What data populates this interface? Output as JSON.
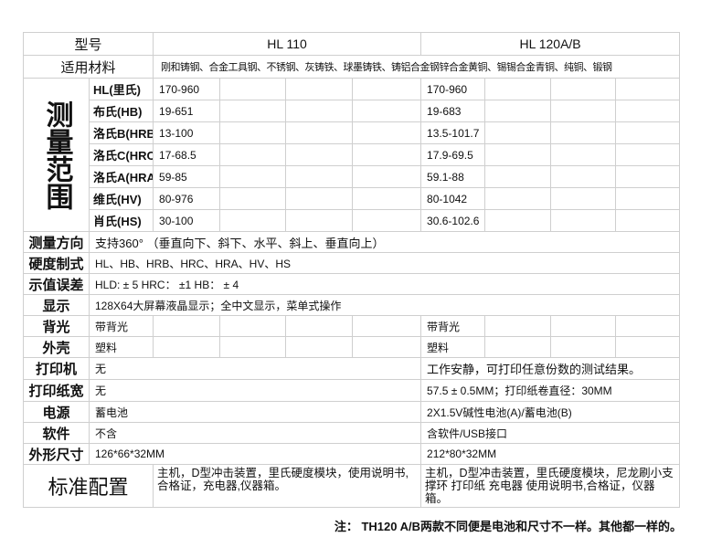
{
  "header": {
    "label": "型号",
    "model_a": "HL 110",
    "model_b": "HL 120A/B"
  },
  "materials": {
    "label": "适用材料",
    "value": "刚和铸钢、合金工具钢、不锈钢、灰铸铁、球墨铸铁、铸铝合金钢锌合金黄铜、锡锡合金青铜、纯铜、锻钢"
  },
  "range": {
    "label": "测量范围",
    "rows": [
      {
        "scale": "HL(里氏)",
        "a": "170-960",
        "b": "170-960"
      },
      {
        "scale": "布氏(HB)",
        "a": "19-651",
        "b": "19-683"
      },
      {
        "scale": "洛氏B(HRB)",
        "a": "13-100",
        "b": "13.5-101.7"
      },
      {
        "scale": "洛氏C(HRC)",
        "a": "17-68.5",
        "b": "17.9-69.5"
      },
      {
        "scale": "洛氏A(HRA)",
        "a": "59-85",
        "b": "59.1-88"
      },
      {
        "scale": "维氏(HV)",
        "a": "80-976",
        "b": "80-1042"
      },
      {
        "scale": "肖氏(HS)",
        "a": "30-100",
        "b": "30.6-102.6"
      }
    ]
  },
  "shared": [
    {
      "label": "测量方向",
      "value": "支持360° （垂直向下、斜下、水平、斜上、垂直向上）"
    },
    {
      "label": "硬度制式",
      "value": "HL、HB、HRB、HRC、HRA、HV、HS"
    },
    {
      "label": "示值误差",
      "value": "HLD: ± 5  HRC： ±1    HB： ± 4"
    },
    {
      "label": "显示",
      "value": "128X64大屏幕液晶显示；全中文显示，菜单式操作"
    }
  ],
  "gridrows": [
    {
      "label": "背光",
      "a": "带背光",
      "b": "带背光"
    },
    {
      "label": "外壳",
      "a": "塑料",
      "b": "塑料"
    }
  ],
  "splitrows": [
    {
      "label": "打印机",
      "a": "无",
      "b": "工作安静，可打印任意份数的测试结果。"
    },
    {
      "label": "打印纸宽",
      "a": "无",
      "b": "57.5 ± 0.5MM；打印纸卷直径：30MM"
    },
    {
      "label": "电源",
      "a": "蓄电池",
      "b": "2X1.5V碱性电池(A)/蓄电池(B)"
    },
    {
      "label": "软件",
      "a": "不含",
      "b": "含软件/USB接口"
    },
    {
      "label": "外形尺寸",
      "a": "126*66*32MM",
      "b": "212*80*32MM"
    }
  ],
  "config": {
    "label": "标准配置",
    "a": "主机，D型冲击装置，里氏硬度模块，使用说明书,合格证，充电器,仪器箱。",
    "b": "主机，D型冲击装置，里氏硬度模块，尼龙刷小支撑环 打印纸 充电器 使用说明书,合格证，仪器箱。"
  },
  "note": "注： TH120 A/B两款不同便是电池和尺寸不一样。其他都一样的。"
}
